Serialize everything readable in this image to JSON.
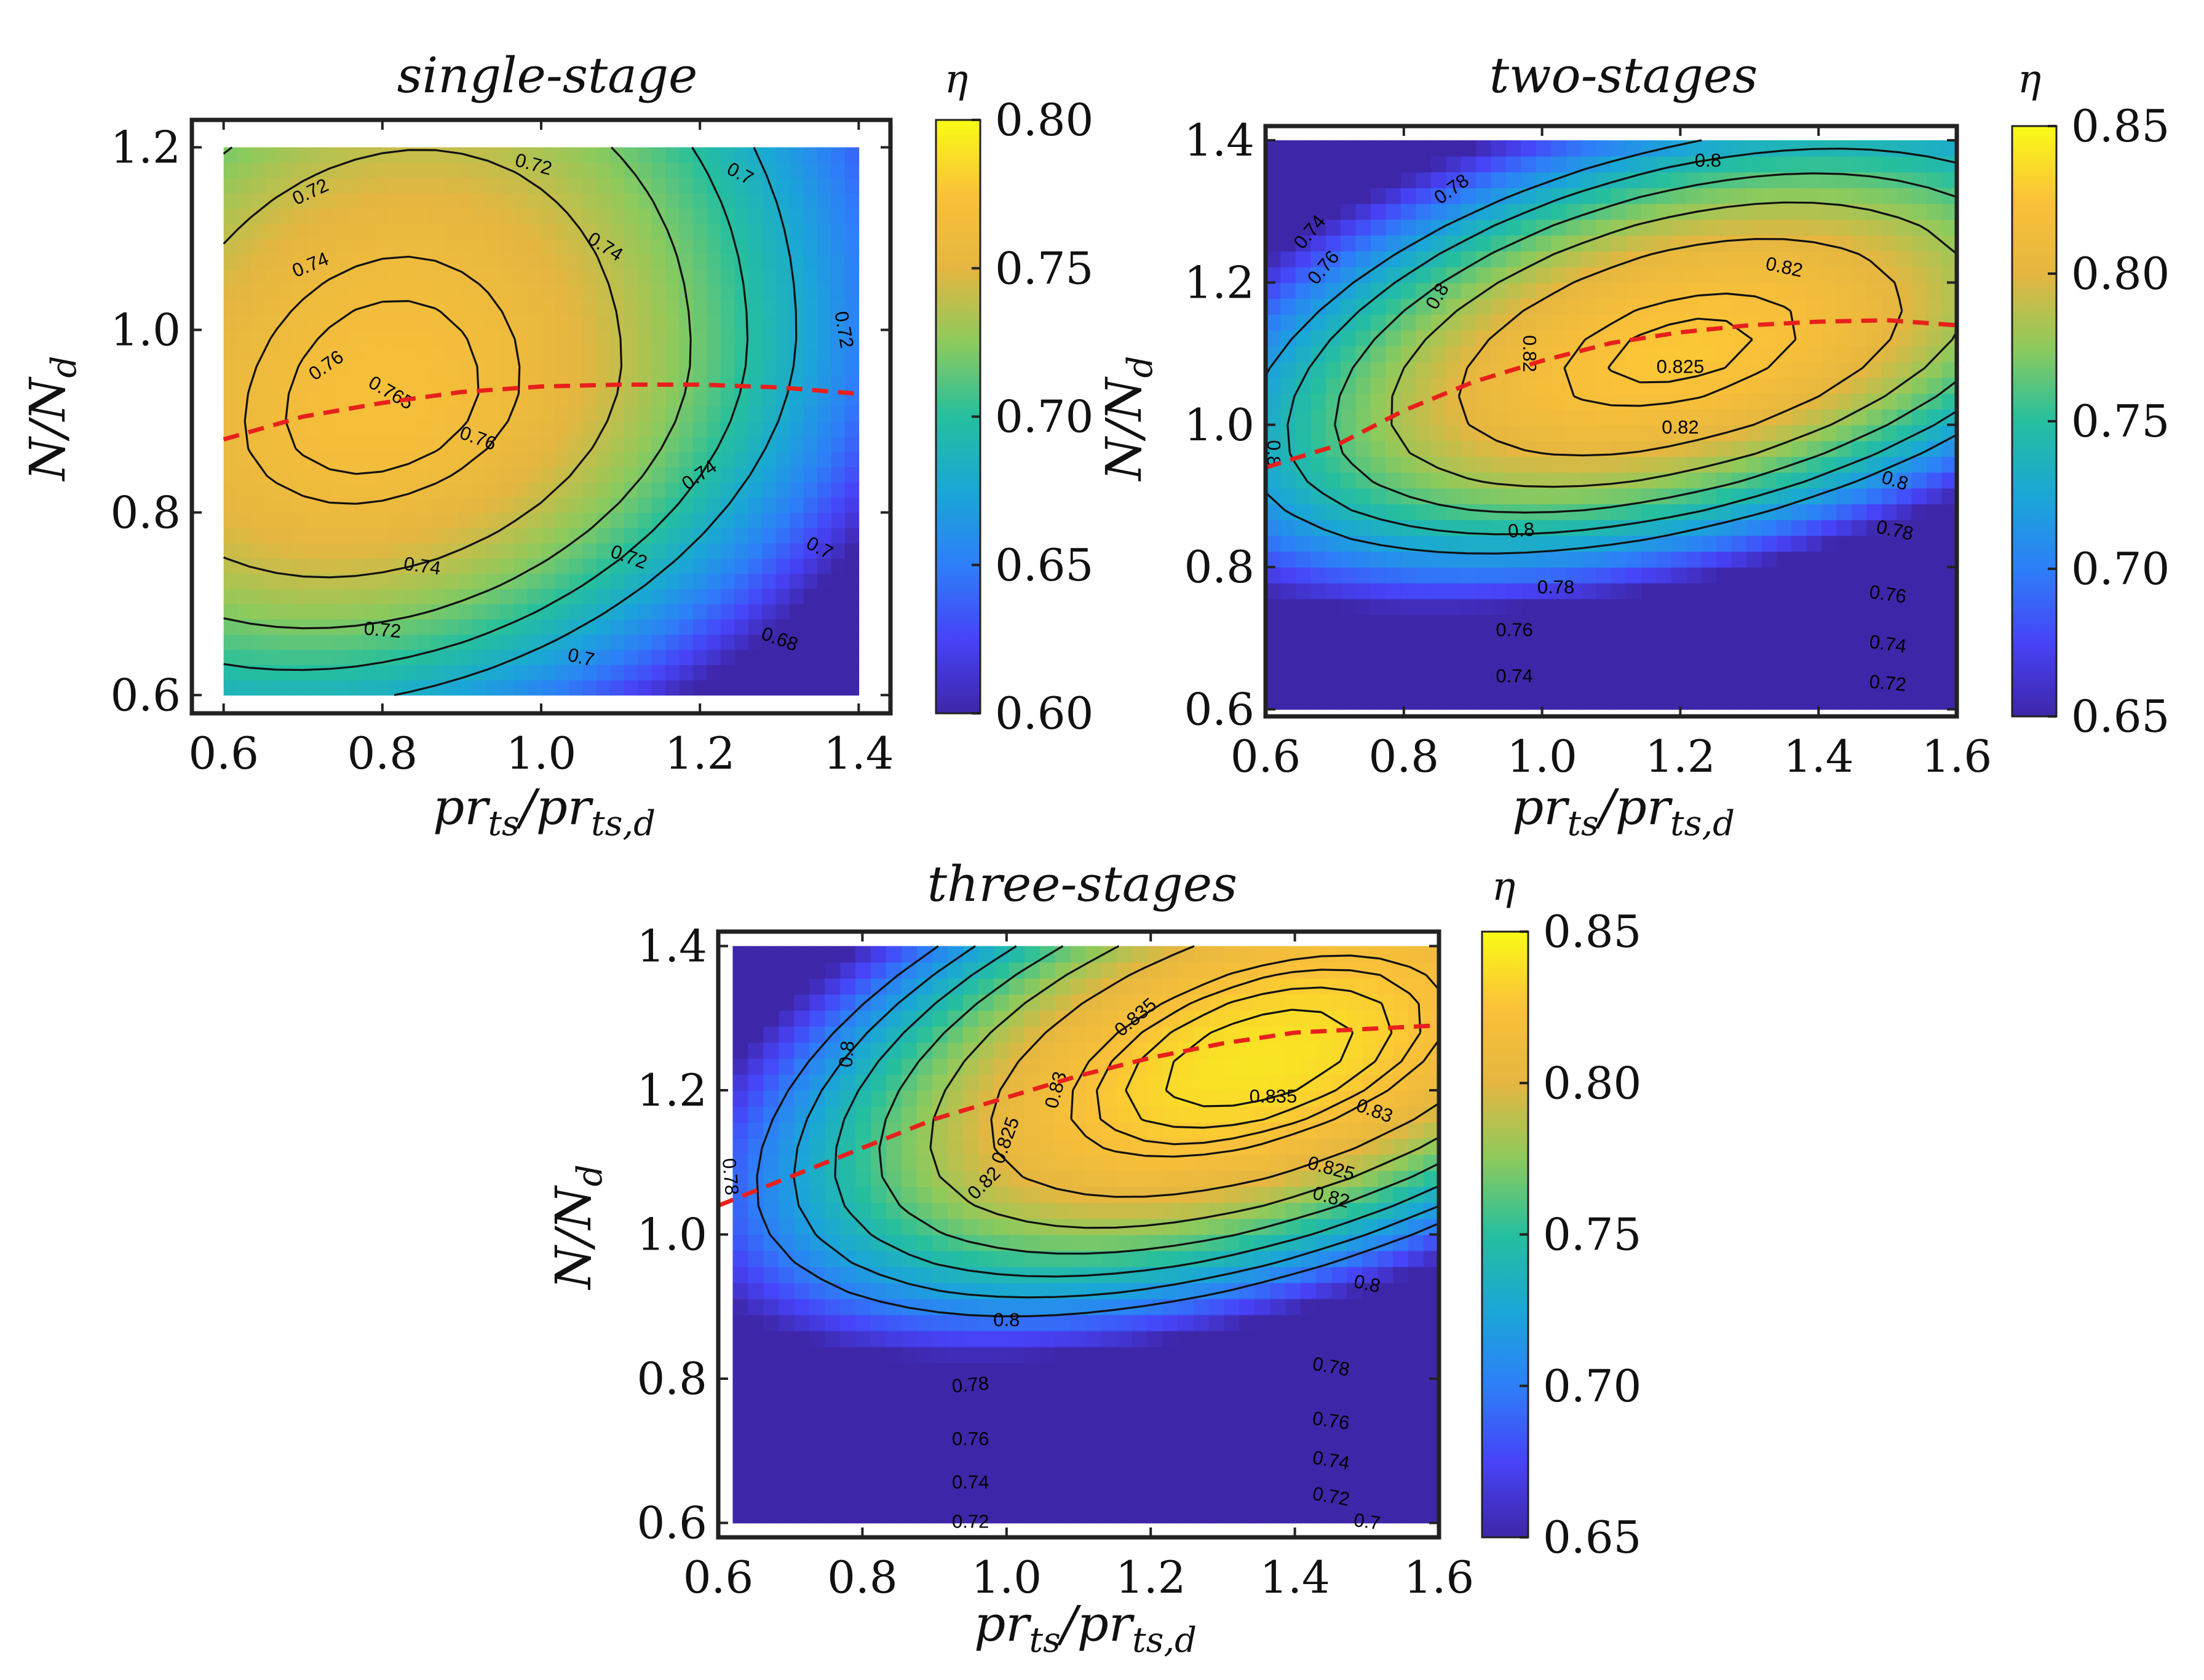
{
  "chart_data": [
    {
      "type": "heatmap",
      "title": "single-stage",
      "xlabel": "pr_ts/pr_ts,d",
      "ylabel": "N/N_d",
      "colorbar_label": "η",
      "x": [
        0.6,
        0.8,
        1.0,
        1.2,
        1.4
      ],
      "y": [
        0.6,
        0.8,
        1.0,
        1.2
      ],
      "x_ticks": [
        "0.6",
        "0.8",
        "1.0",
        "1.2",
        "1.4"
      ],
      "y_ticks": [
        "0.6",
        "0.8",
        "1.0",
        "1.2"
      ],
      "xlim": [
        0.56,
        1.44
      ],
      "ylim": [
        0.58,
        1.23
      ],
      "data_extent": {
        "x": [
          0.6,
          1.4
        ],
        "y": [
          0.6,
          1.2
        ]
      },
      "clim": [
        0.6,
        0.8
      ],
      "colorbar_ticks": [
        "0.60",
        "0.65",
        "0.70",
        "0.75",
        "0.80"
      ],
      "peak": {
        "x": 0.8,
        "y": 0.92,
        "value": 0.77
      },
      "shape": {
        "sx": 0.55,
        "syLow": 0.34,
        "syHigh": 0.5,
        "tilt": 0.15,
        "dx": 0.1
      },
      "contour_levels": [
        0.68,
        0.7,
        0.72,
        0.74,
        0.76,
        0.765
      ],
      "contour_labels": [
        {
          "text": "0.72",
          "x": 0.71,
          "y": 1.15,
          "angle": -25
        },
        {
          "text": "0.72",
          "x": 0.99,
          "y": 1.18,
          "angle": 15
        },
        {
          "text": "0.7",
          "x": 1.25,
          "y": 1.17,
          "angle": 28
        },
        {
          "text": "0.74",
          "x": 0.71,
          "y": 1.07,
          "angle": -22
        },
        {
          "text": "0.74",
          "x": 1.08,
          "y": 1.09,
          "angle": 32
        },
        {
          "text": "0.72",
          "x": 1.38,
          "y": 1.0,
          "angle": 80
        },
        {
          "text": "0.76",
          "x": 0.73,
          "y": 0.96,
          "angle": -35
        },
        {
          "text": "0.765",
          "x": 0.81,
          "y": 0.93,
          "angle": 30
        },
        {
          "text": "0.76",
          "x": 0.92,
          "y": 0.88,
          "angle": 20
        },
        {
          "text": "0.74",
          "x": 1.2,
          "y": 0.84,
          "angle": -35
        },
        {
          "text": "0.74",
          "x": 0.85,
          "y": 0.74,
          "angle": 8
        },
        {
          "text": "0.72",
          "x": 1.11,
          "y": 0.75,
          "angle": 20
        },
        {
          "text": "0.7",
          "x": 1.35,
          "y": 0.76,
          "angle": 28
        },
        {
          "text": "0.72",
          "x": 0.8,
          "y": 0.67,
          "angle": 5
        },
        {
          "text": "0.7",
          "x": 1.05,
          "y": 0.64,
          "angle": 13
        },
        {
          "text": "0.68",
          "x": 1.3,
          "y": 0.66,
          "angle": 20
        }
      ],
      "optimal_line": {
        "x": [
          0.6,
          0.7,
          0.8,
          0.9,
          1.0,
          1.1,
          1.2,
          1.3,
          1.4
        ],
        "y": [
          0.88,
          0.905,
          0.92,
          0.932,
          0.938,
          0.94,
          0.94,
          0.937,
          0.93
        ]
      }
    },
    {
      "type": "heatmap",
      "title": "two-stages",
      "xlabel": "pr_ts/pr_ts,d",
      "ylabel": "N/N_d",
      "colorbar_label": "η",
      "x": [
        0.6,
        0.8,
        1.0,
        1.2,
        1.4,
        1.6
      ],
      "y": [
        0.6,
        0.8,
        1.0,
        1.2,
        1.4
      ],
      "x_ticks": [
        "0.6",
        "0.8",
        "1.0",
        "1.2",
        "1.4",
        "1.6"
      ],
      "y_ticks": [
        "0.6",
        "0.8",
        "1.0",
        "1.2",
        "1.4"
      ],
      "xlim": [
        0.6,
        1.6
      ],
      "ylim": [
        0.59,
        1.42
      ],
      "data_extent": {
        "x": [
          0.6,
          1.6
        ],
        "y": [
          0.6,
          1.4
        ]
      },
      "clim": [
        0.65,
        0.85
      ],
      "colorbar_ticks": [
        "0.65",
        "0.70",
        "0.75",
        "0.80",
        "0.85"
      ],
      "peak": {
        "x": 1.2,
        "y": 1.1,
        "value": 0.828
      },
      "shape": {
        "sx": 0.9,
        "syLow": 0.36,
        "syHigh": 0.42,
        "tilt": 0.2,
        "dx": 0.22
      },
      "contour_levels": [
        0.72,
        0.74,
        0.76,
        0.78,
        0.8,
        0.82,
        0.825
      ],
      "contour_labels": [
        {
          "text": "0.74",
          "x": 0.665,
          "y": 1.27,
          "angle": -50
        },
        {
          "text": "0.76",
          "x": 0.685,
          "y": 1.22,
          "angle": -50
        },
        {
          "text": "0.78",
          "x": 0.87,
          "y": 1.33,
          "angle": -35
        },
        {
          "text": "0.8",
          "x": 1.24,
          "y": 1.37,
          "angle": 0
        },
        {
          "text": "0.8",
          "x": 0.85,
          "y": 1.18,
          "angle": -60
        },
        {
          "text": "0.82",
          "x": 1.35,
          "y": 1.22,
          "angle": 12
        },
        {
          "text": "0.82",
          "x": 0.98,
          "y": 1.1,
          "angle": 90
        },
        {
          "text": "0.825",
          "x": 1.2,
          "y": 1.08,
          "angle": 0
        },
        {
          "text": "0.82",
          "x": 1.2,
          "y": 0.995,
          "angle": 0
        },
        {
          "text": "0.8",
          "x": 1.51,
          "y": 0.92,
          "angle": 18
        },
        {
          "text": "0.8",
          "x": 0.97,
          "y": 0.85,
          "angle": -5
        },
        {
          "text": "0.8",
          "x": 0.61,
          "y": 0.96,
          "angle": 90
        },
        {
          "text": "0.78",
          "x": 1.51,
          "y": 0.85,
          "angle": 12
        },
        {
          "text": "0.78",
          "x": 1.02,
          "y": 0.77,
          "angle": 0
        },
        {
          "text": "0.76",
          "x": 1.5,
          "y": 0.76,
          "angle": 8
        },
        {
          "text": "0.76",
          "x": 0.96,
          "y": 0.71,
          "angle": 0
        },
        {
          "text": "0.74",
          "x": 1.5,
          "y": 0.69,
          "angle": 8
        },
        {
          "text": "0.74",
          "x": 0.96,
          "y": 0.645,
          "angle": 0
        },
        {
          "text": "0.72",
          "x": 1.5,
          "y": 0.635,
          "angle": 5
        }
      ],
      "optimal_line": {
        "x": [
          0.6,
          0.7,
          0.8,
          0.9,
          1.0,
          1.1,
          1.2,
          1.3,
          1.4,
          1.5,
          1.6
        ],
        "y": [
          0.94,
          0.97,
          1.02,
          1.06,
          1.09,
          1.115,
          1.13,
          1.14,
          1.145,
          1.147,
          1.14
        ]
      }
    },
    {
      "type": "heatmap",
      "title": "three-stages",
      "xlabel": "pr_ts/pr_ts,d",
      "ylabel": "N/N_d",
      "colorbar_label": "η",
      "x": [
        0.6,
        0.8,
        1.0,
        1.2,
        1.4,
        1.6
      ],
      "y": [
        0.6,
        0.8,
        1.0,
        1.2,
        1.4
      ],
      "x_ticks": [
        "0.6",
        "0.8",
        "1.0",
        "1.2",
        "1.4",
        "1.6"
      ],
      "y_ticks": [
        "0.6",
        "0.8",
        "1.0",
        "1.2",
        "1.4"
      ],
      "xlim": [
        0.6,
        1.6
      ],
      "ylim": [
        0.58,
        1.42
      ],
      "data_extent": {
        "x": [
          0.62,
          1.6
        ],
        "y": [
          0.6,
          1.4
        ]
      },
      "clim": [
        0.65,
        0.85
      ],
      "colorbar_ticks": [
        "0.65",
        "0.70",
        "0.75",
        "0.80",
        "0.85"
      ],
      "peak": {
        "x": 1.35,
        "y": 1.24,
        "value": 0.84
      },
      "shape": {
        "sx": 0.95,
        "syLow": 0.42,
        "syHigh": 0.48,
        "tilt": 0.25,
        "dx": 0.26
      },
      "contour_levels": [
        0.7,
        0.72,
        0.74,
        0.76,
        0.78,
        0.8,
        0.82,
        0.825,
        0.83,
        0.835
      ],
      "contour_labels": [
        {
          "text": "0.835",
          "x": 1.18,
          "y": 1.3,
          "angle": -40
        },
        {
          "text": "0.835",
          "x": 1.37,
          "y": 1.19,
          "angle": 0
        },
        {
          "text": "0.83",
          "x": 1.07,
          "y": 1.2,
          "angle": -75
        },
        {
          "text": "0.83",
          "x": 1.51,
          "y": 1.17,
          "angle": 20
        },
        {
          "text": "0.8",
          "x": 0.78,
          "y": 1.25,
          "angle": -85
        },
        {
          "text": "0.825",
          "x": 1.0,
          "y": 1.13,
          "angle": -70
        },
        {
          "text": "0.825",
          "x": 1.45,
          "y": 1.09,
          "angle": 15
        },
        {
          "text": "0.82",
          "x": 0.97,
          "y": 1.07,
          "angle": -45
        },
        {
          "text": "0.82",
          "x": 1.45,
          "y": 1.05,
          "angle": 15
        },
        {
          "text": "0.78",
          "x": 0.615,
          "y": 1.08,
          "angle": 85
        },
        {
          "text": "0.8",
          "x": 1.0,
          "y": 0.88,
          "angle": 0
        },
        {
          "text": "0.8",
          "x": 1.5,
          "y": 0.93,
          "angle": 12
        },
        {
          "text": "0.78",
          "x": 0.95,
          "y": 0.79,
          "angle": -5
        },
        {
          "text": "0.78",
          "x": 1.45,
          "y": 0.815,
          "angle": 10
        },
        {
          "text": "0.76",
          "x": 0.95,
          "y": 0.715,
          "angle": 0
        },
        {
          "text": "0.76",
          "x": 1.45,
          "y": 0.74,
          "angle": 8
        },
        {
          "text": "0.74",
          "x": 0.95,
          "y": 0.655,
          "angle": 0
        },
        {
          "text": "0.74",
          "x": 1.45,
          "y": 0.685,
          "angle": 10
        },
        {
          "text": "0.72",
          "x": 0.95,
          "y": 0.6,
          "angle": 0
        },
        {
          "text": "0.72",
          "x": 1.45,
          "y": 0.635,
          "angle": 10
        },
        {
          "text": "0.7",
          "x": 1.5,
          "y": 0.6,
          "angle": 8
        }
      ],
      "optimal_line": {
        "x": [
          0.6,
          0.7,
          0.8,
          0.9,
          1.0,
          1.1,
          1.2,
          1.3,
          1.4,
          1.5,
          1.6
        ],
        "y": [
          1.04,
          1.08,
          1.12,
          1.16,
          1.19,
          1.22,
          1.245,
          1.265,
          1.28,
          1.285,
          1.29
        ]
      }
    }
  ]
}
